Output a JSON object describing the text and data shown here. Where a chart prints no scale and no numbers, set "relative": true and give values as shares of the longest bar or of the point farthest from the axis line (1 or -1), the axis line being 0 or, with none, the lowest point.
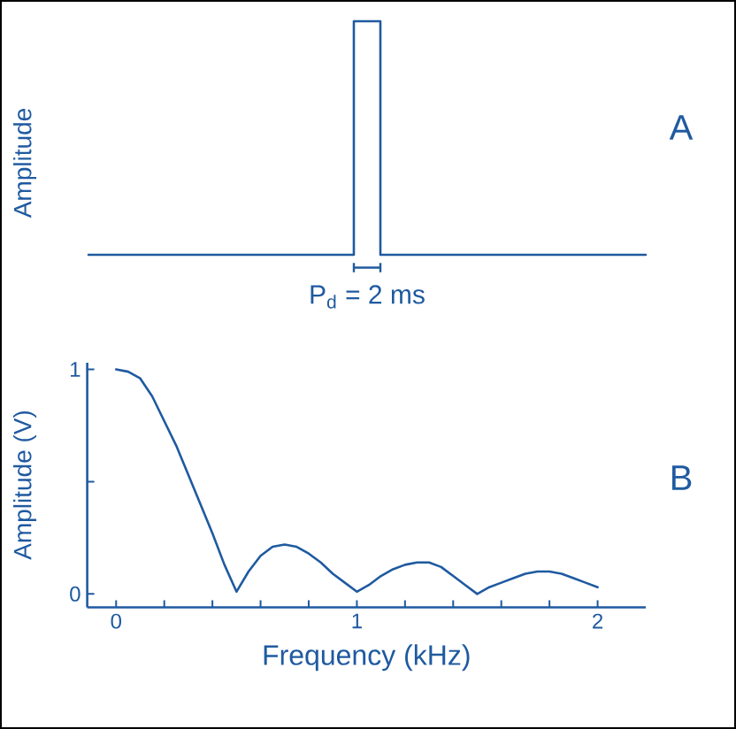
{
  "chart_data": [
    {
      "type": "step",
      "ylabel": "Amplitude",
      "categories": [
        null,
        null,
        null,
        null,
        null,
        null,
        null,
        null,
        null,
        null,
        null,
        null,
        null,
        null,
        null,
        null,
        null,
        null,
        null,
        null,
        null,
        null
      ],
      "values": [
        0,
        0,
        0,
        0,
        0,
        0,
        0,
        0,
        0,
        0,
        1,
        0,
        0,
        0,
        0,
        0,
        0,
        0,
        0,
        0,
        0,
        0
      ],
      "relative": true,
      "color": "#1f5aa0",
      "annotations": [
        "P$_{d}$ = 2 ms",
        "A"
      ]
    },
    {
      "type": "line",
      "annotations": [
        "B"
      ],
      "xlabel": "Frequency (kHz)",
      "ylabel": "Amplitude (V)",
      "color": "#1f5aa0",
      "x": [
        0,
        0.05,
        0.1,
        0.15,
        0.2,
        0.25,
        0.3,
        0.35,
        0.4,
        0.45,
        0.5,
        0.55,
        0.6,
        0.65,
        0.7,
        0.75,
        0.8,
        0.85,
        0.9,
        0.95,
        1.0,
        1.05,
        1.1,
        1.15,
        1.2,
        1.25,
        1.3,
        1.35,
        1.4,
        1.45,
        1.5,
        1.55,
        1.6,
        1.65,
        1.7,
        1.75,
        1.8,
        1.85,
        1.9,
        1.95,
        2.0
      ],
      "values": [
        1.0,
        0.99,
        0.96,
        0.88,
        0.77,
        0.66,
        0.53,
        0.4,
        0.27,
        0.13,
        0.01,
        0.1,
        0.17,
        0.21,
        0.22,
        0.21,
        0.18,
        0.14,
        0.09,
        0.05,
        0.01,
        0.04,
        0.08,
        0.11,
        0.13,
        0.14,
        0.14,
        0.12,
        0.08,
        0.04,
        0.0,
        0.03,
        0.05,
        0.07,
        0.09,
        0.1,
        0.1,
        0.09,
        0.07,
        0.05,
        0.03
      ],
      "xlim": [
        -0.12,
        2.2
      ],
      "ylim": [
        -0.06,
        1.03
      ],
      "xticks": [
        0,
        {
          "value": 0.2,
          "label": null
        },
        {
          "value": 0.4,
          "label": null
        },
        {
          "value": 0.6,
          "label": null
        },
        {
          "value": 0.8,
          "label": null
        },
        1,
        {
          "value": 1.2,
          "label": null
        },
        {
          "value": 1.4,
          "label": null
        },
        {
          "value": 1.6,
          "label": null
        },
        {
          "value": 1.8,
          "label": null
        },
        2
      ],
      "yticks": [
        0,
        {
          "value": 0.5,
          "label": null
        },
        1
      ]
    }
  ]
}
